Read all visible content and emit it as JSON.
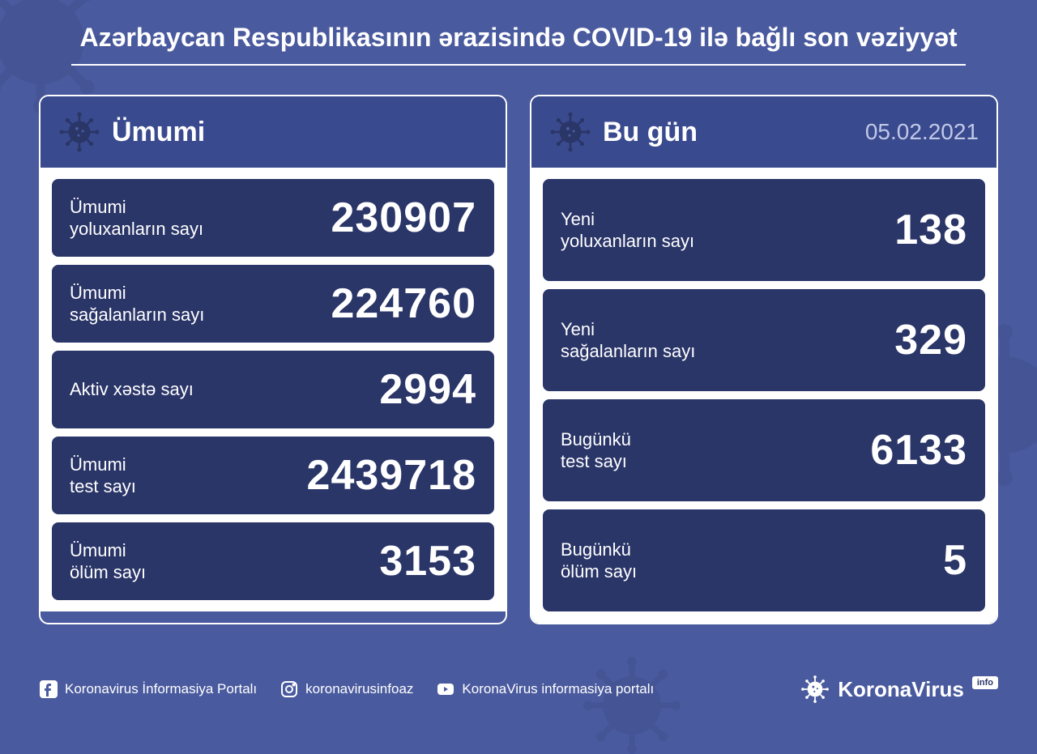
{
  "colors": {
    "page_bg": "#4a5a9e",
    "panel_header_bg": "#3a4a8e",
    "stat_row_bg": "#2a3568",
    "text_light": "#ffffff",
    "date_color": "#c0c8e8"
  },
  "header": {
    "title": "Azərbaycan Respublikasının ərazisində COVID-19 ilə bağlı son vəziyyət"
  },
  "panels": {
    "total": {
      "title": "Ümumi",
      "rows": [
        {
          "label": "Ümumi\nyoluxanların sayı",
          "value": "230907"
        },
        {
          "label": "Ümumi\nsağalanların sayı",
          "value": "224760"
        },
        {
          "label": "Aktiv xəstə sayı",
          "value": "2994"
        },
        {
          "label": "Ümumi\ntest sayı",
          "value": "2439718"
        },
        {
          "label": "Ümumi\nölüm sayı",
          "value": "3153"
        }
      ]
    },
    "today": {
      "title": "Bu gün",
      "date": "05.02.2021",
      "rows": [
        {
          "label": "Yeni\nyoluxanların sayı",
          "value": "138"
        },
        {
          "label": "Yeni\nsağalanların sayı",
          "value": "329"
        },
        {
          "label": "Bugünkü\ntest sayı",
          "value": "6133"
        },
        {
          "label": "Bugünkü\nölüm sayı",
          "value": "5"
        }
      ]
    }
  },
  "footer": {
    "facebook": "Koronavirus İnformasiya Portalı",
    "instagram": "koronavirusinfoaz",
    "youtube": "KoronaVirus informasiya portalı",
    "brand": "KoronaVirus",
    "brand_badge": "info"
  }
}
